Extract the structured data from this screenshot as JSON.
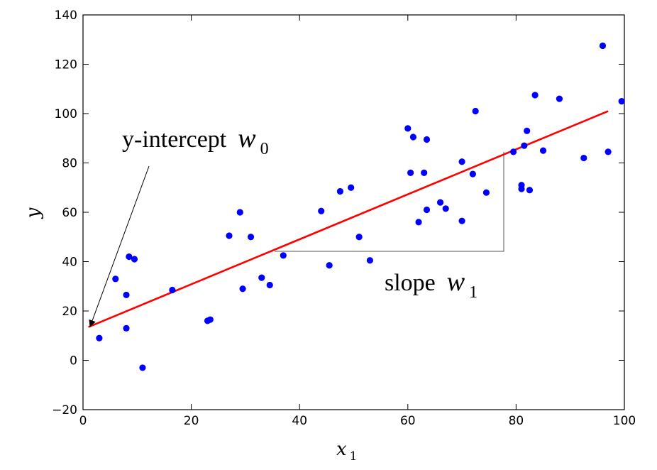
{
  "chart_data": {
    "type": "scatter",
    "xlim": [
      0,
      100
    ],
    "ylim": [
      -20,
      140
    ],
    "xticks": [
      0,
      20,
      40,
      60,
      80,
      100
    ],
    "yticks": [
      -20,
      0,
      20,
      40,
      60,
      80,
      100,
      120,
      140
    ],
    "xtick_labels": [
      "0",
      "20",
      "40",
      "60",
      "80",
      "100"
    ],
    "ytick_labels": [
      "−20",
      "0",
      "20",
      "40",
      "60",
      "80",
      "100",
      "120",
      "140"
    ],
    "xlabel": "x",
    "xlabel_sub": "1",
    "ylabel": "y",
    "grid": false,
    "point_color": "#0000ff",
    "line_color": "#ff0000",
    "points": [
      [
        3,
        9
      ],
      [
        6,
        33
      ],
      [
        8,
        26.5
      ],
      [
        8,
        13
      ],
      [
        8.5,
        42
      ],
      [
        9.5,
        41
      ],
      [
        11,
        -3
      ],
      [
        16.5,
        28.5
      ],
      [
        23,
        16
      ],
      [
        23.5,
        16.5
      ],
      [
        27,
        50.5
      ],
      [
        29,
        60
      ],
      [
        29.5,
        29
      ],
      [
        31,
        50
      ],
      [
        33,
        33.5
      ],
      [
        34.5,
        30.5
      ],
      [
        37,
        42.5
      ],
      [
        44,
        60.5
      ],
      [
        45.5,
        38.5
      ],
      [
        47.5,
        68.5
      ],
      [
        49.5,
        70
      ],
      [
        51,
        50
      ],
      [
        53,
        40.5
      ],
      [
        60,
        94
      ],
      [
        60.5,
        76
      ],
      [
        61,
        90.5
      ],
      [
        62,
        56
      ],
      [
        63,
        76
      ],
      [
        63.5,
        89.5
      ],
      [
        63.5,
        61
      ],
      [
        66,
        64
      ],
      [
        67,
        61.5
      ],
      [
        70,
        80.5
      ],
      [
        70,
        56.5
      ],
      [
        72,
        75.5
      ],
      [
        72.5,
        101
      ],
      [
        74.5,
        68
      ],
      [
        79.5,
        84.5
      ],
      [
        81,
        71
      ],
      [
        81,
        69.5
      ],
      [
        81.5,
        87
      ],
      [
        82,
        93
      ],
      [
        82.5,
        69
      ],
      [
        83.5,
        107.5
      ],
      [
        85,
        85
      ],
      [
        88,
        106
      ],
      [
        92.5,
        82
      ],
      [
        96,
        127.5
      ],
      [
        97,
        84.5
      ],
      [
        99.5,
        105
      ]
    ],
    "line": {
      "x": [
        1,
        97
      ],
      "y": [
        13.5,
        101
      ]
    },
    "annotations": {
      "intercept_text": "y-intercept",
      "intercept_w": "w",
      "intercept_sub": "0",
      "slope_text": "slope",
      "slope_w": "w",
      "slope_sub": "1"
    }
  }
}
